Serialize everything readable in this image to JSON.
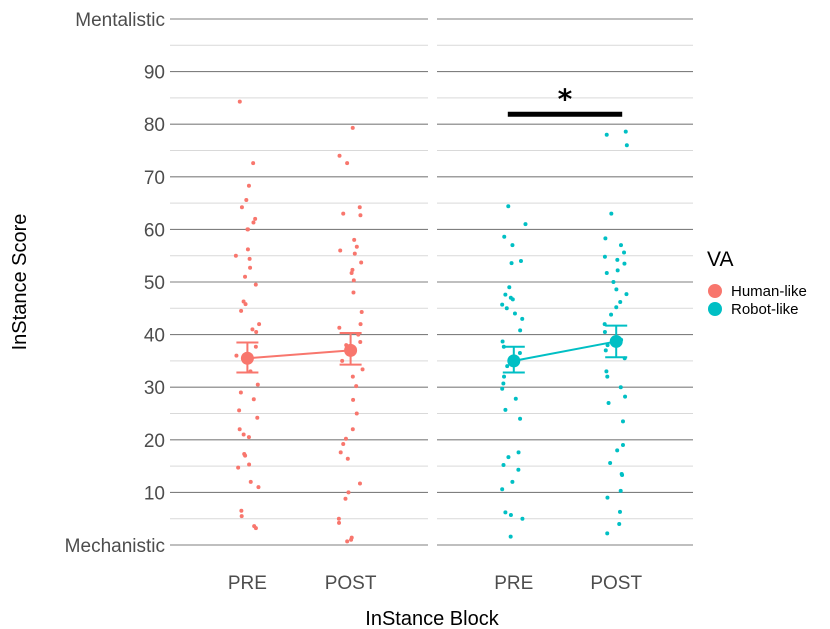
{
  "chart_data": {
    "type": "scatter",
    "xlabel": "InStance Block",
    "ylabel": "InStance Score",
    "ylim": [
      0,
      100
    ],
    "y_ticks": [
      {
        "value": 0,
        "label": "Mechanistic"
      },
      {
        "value": 10,
        "label": "10"
      },
      {
        "value": 20,
        "label": "20"
      },
      {
        "value": 30,
        "label": "30"
      },
      {
        "value": 40,
        "label": "40"
      },
      {
        "value": 50,
        "label": "50"
      },
      {
        "value": 60,
        "label": "60"
      },
      {
        "value": 70,
        "label": "70"
      },
      {
        "value": 80,
        "label": "80"
      },
      {
        "value": 90,
        "label": "90"
      },
      {
        "value": 100,
        "label": "Mentalistic"
      }
    ],
    "grid": true,
    "legend": {
      "title": "VA",
      "position": "right"
    },
    "panels": [
      {
        "categories": [
          "PRE",
          "POST"
        ],
        "series": [
          {
            "name": "Human-like",
            "color": "#F8766D",
            "means": [
              35.5,
              37.0
            ],
            "ci_low": [
              32.8,
              34.3
            ],
            "ci_high": [
              38.5,
              40.3
            ],
            "raw_points": [
              [
                84.3,
                72.6,
                68.3,
                65.6,
                64.2,
                62.0,
                61.3,
                60.0,
                60.0,
                56.2,
                55.0,
                54.4,
                52.7,
                51.0,
                49.5,
                46.3,
                45.8,
                44.5,
                42.0,
                41.0,
                40.5,
                37.7,
                36.0,
                33.0,
                30.5,
                29.0,
                27.7,
                25.6,
                24.2,
                22.0,
                21.0,
                20.5,
                17.3,
                17.0,
                15.3,
                14.7,
                12.0,
                11.0,
                6.5,
                5.5,
                3.6,
                3.2
              ],
              [
                79.3,
                74.0,
                72.6,
                64.2,
                63.0,
                62.7,
                58.0,
                56.7,
                56.0,
                55.4,
                53.7,
                52.3,
                51.7,
                50.3,
                48.0,
                44.3,
                42.0,
                41.3,
                40.0,
                38.6,
                38.0,
                35.0,
                33.4,
                32.0,
                30.2,
                27.6,
                25.0,
                22.0,
                20.2,
                19.2,
                17.6,
                16.4,
                11.7,
                10.0,
                8.8,
                5.0,
                4.2,
                1.4,
                1.0,
                0.7
              ]
            ]
          }
        ]
      },
      {
        "categories": [
          "PRE",
          "POST"
        ],
        "series": [
          {
            "name": "Robot-like",
            "color": "#00BFC4",
            "means": [
              35.0,
              38.7
            ],
            "ci_low": [
              32.8,
              35.7
            ],
            "ci_high": [
              37.7,
              41.7
            ],
            "raw_points": [
              [
                64.4,
                61.0,
                58.6,
                57.0,
                54.0,
                53.6,
                49.0,
                47.6,
                47.0,
                46.7,
                45.7,
                45.0,
                44.0,
                43.0,
                40.8,
                38.7,
                37.7,
                36.5,
                34.5,
                34.0,
                32.0,
                30.7,
                29.7,
                27.8,
                25.7,
                24.0,
                17.6,
                16.7,
                15.2,
                14.3,
                12.0,
                10.6,
                6.2,
                5.7,
                5.0,
                1.6
              ],
              [
                78.6,
                78.0,
                76.0,
                63.0,
                58.3,
                57.0,
                55.6,
                54.8,
                54.2,
                53.5,
                52.2,
                51.7,
                50.0,
                48.6,
                47.7,
                46.2,
                45.2,
                43.8,
                42.0,
                40.5,
                39.0,
                38.0,
                37.0,
                35.5,
                33.0,
                32.0,
                30.0,
                28.2,
                27.0,
                23.5,
                19.0,
                18.0,
                15.6,
                13.5,
                13.3,
                10.3,
                9.0,
                6.3,
                4.0,
                2.2
              ]
            ]
          }
        ]
      }
    ],
    "annotations": [
      {
        "text": "*",
        "panel": 1,
        "from": "PRE",
        "to": "POST",
        "y": 81.5
      }
    ]
  }
}
